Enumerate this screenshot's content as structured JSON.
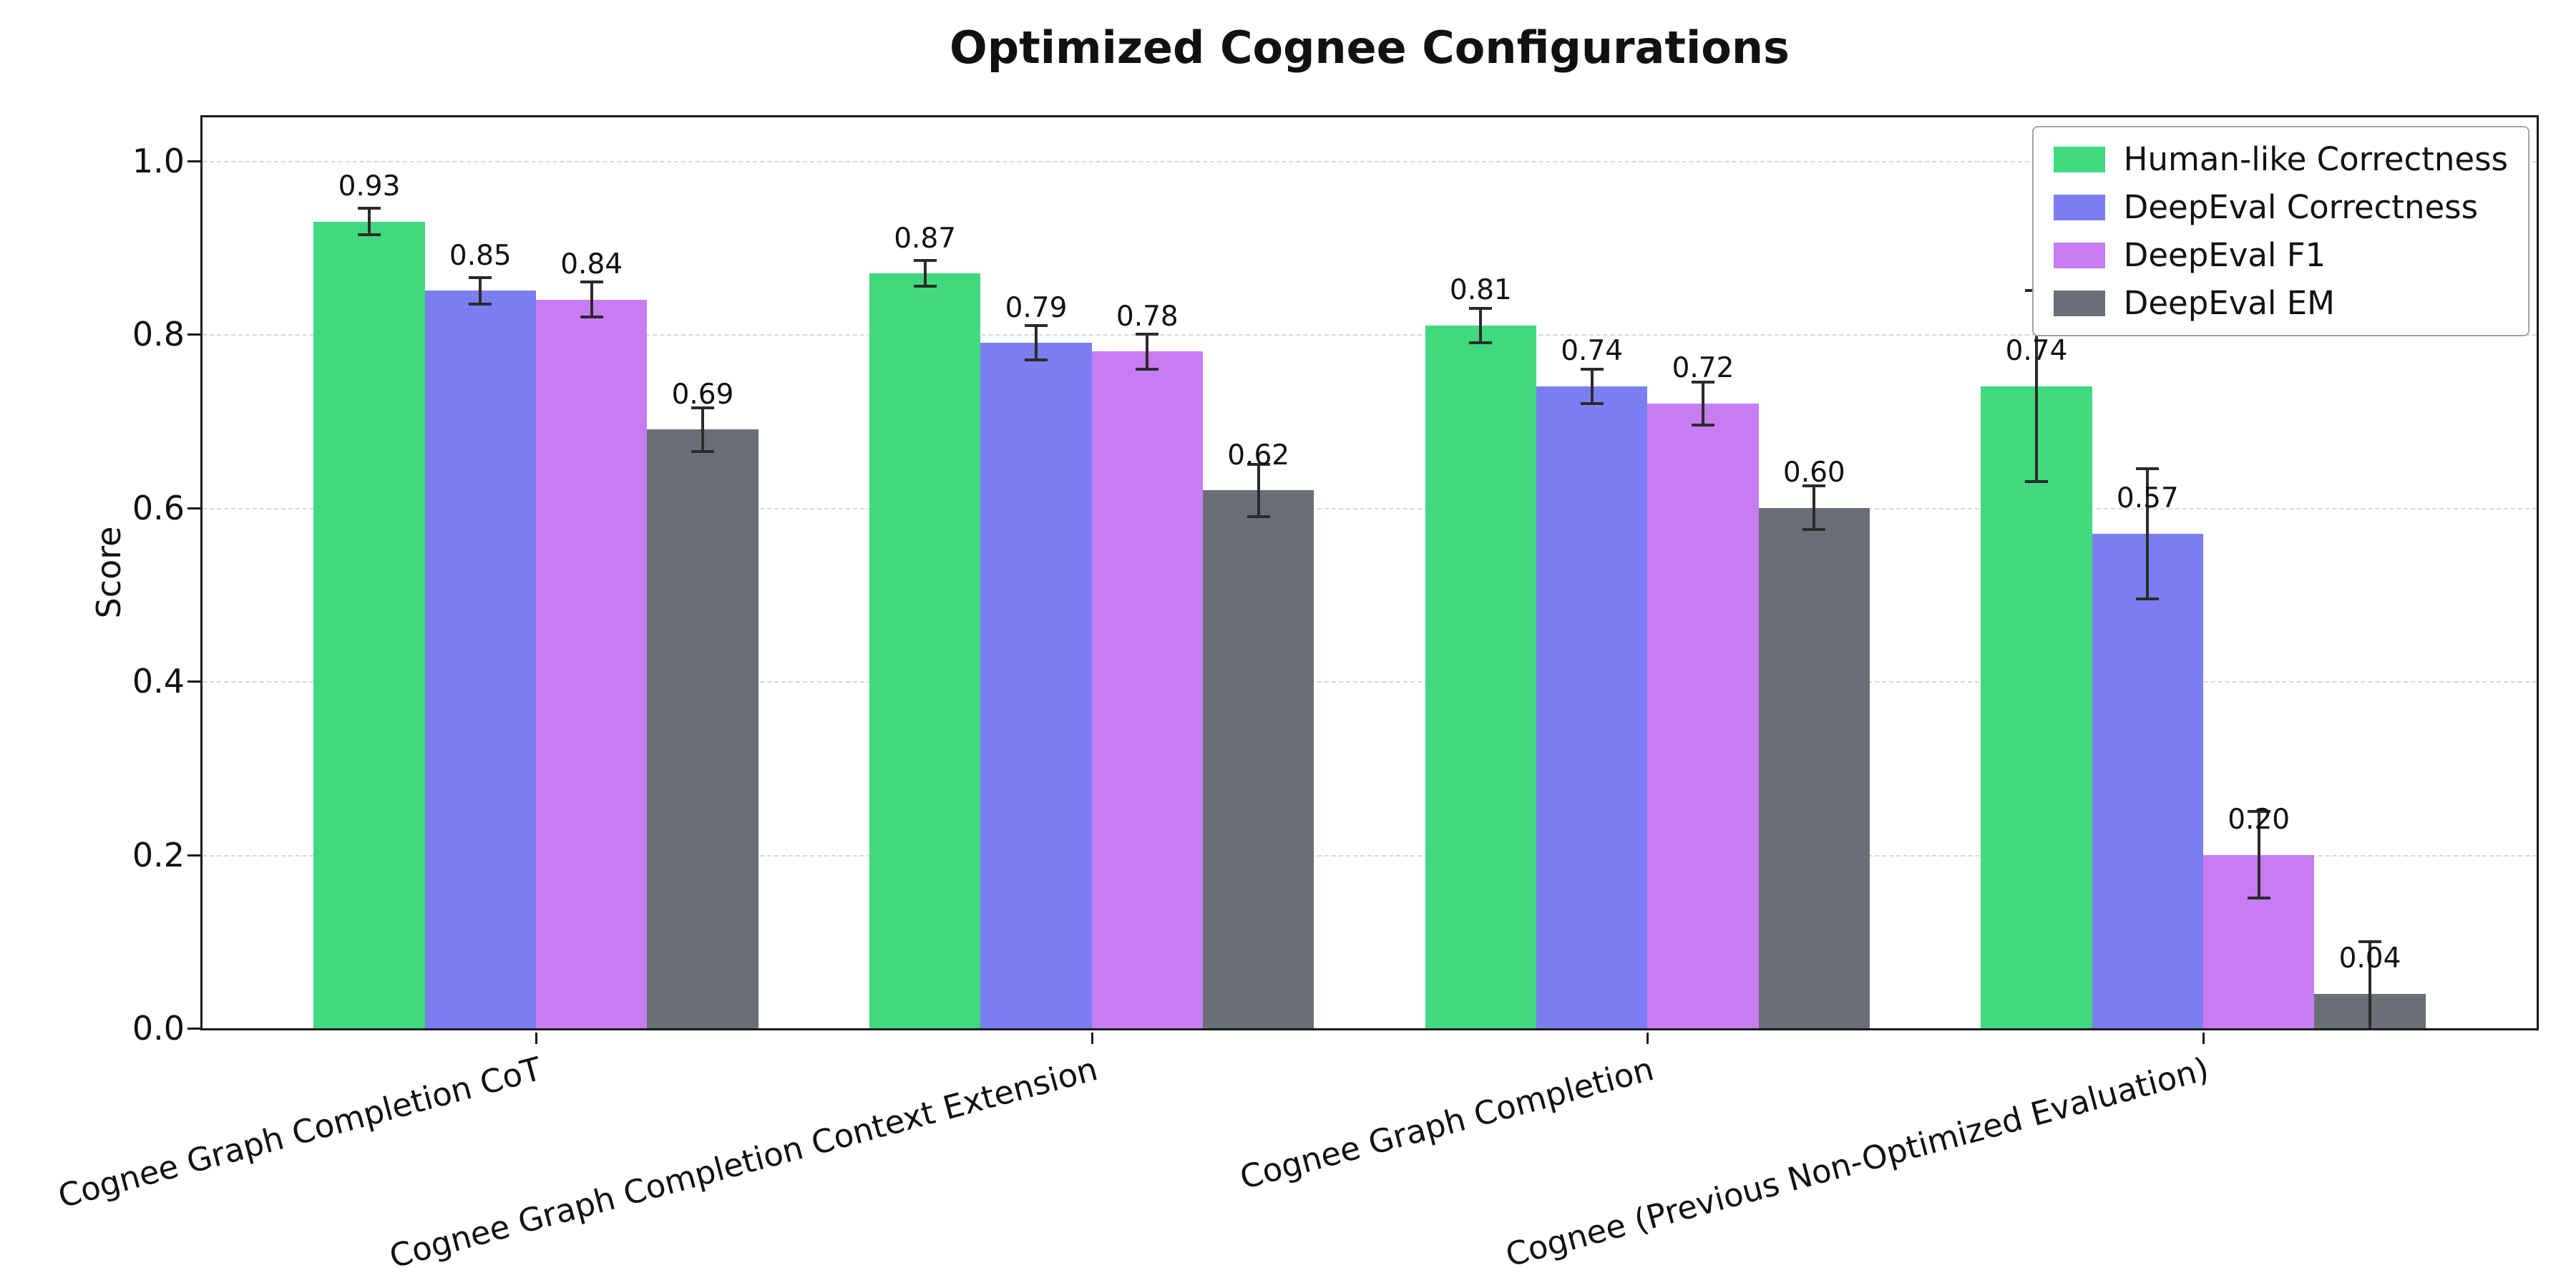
{
  "title": "Optimized Cognee Configurations",
  "chart_data": {
    "type": "bar",
    "title": "Optimized Cognee Configurations",
    "xlabel": "",
    "ylabel": "Score",
    "ylim": [
      0,
      1.05
    ],
    "yticks": [
      0,
      0.2,
      0.4,
      0.6,
      0.8,
      1.0
    ],
    "ytick_labels": [
      "0.0",
      "0.2",
      "0.4",
      "0.6",
      "0.8",
      "1.0"
    ],
    "grid": "horizontal dashed",
    "legend_position": "upper right",
    "categories": [
      "Cognee Graph Completion CoT",
      "Cognee Graph Completion Context Extension",
      "Cognee Graph Completion",
      "Cognee (Previous Non-Optimized Evaluation)"
    ],
    "series": [
      {
        "name": "Human-like Correctness",
        "color": "#41d97d",
        "values": [
          0.93,
          0.87,
          0.81,
          0.74
        ],
        "errors": [
          0.015,
          0.015,
          0.02,
          0.11
        ]
      },
      {
        "name": "DeepEval Correctness",
        "color": "#7b7ef1",
        "values": [
          0.85,
          0.79,
          0.74,
          0.57
        ],
        "errors": [
          0.015,
          0.02,
          0.02,
          0.075
        ]
      },
      {
        "name": "DeepEval F1",
        "color": "#c77df1",
        "values": [
          0.84,
          0.78,
          0.72,
          0.2
        ],
        "errors": [
          0.02,
          0.02,
          0.025,
          0.05
        ]
      },
      {
        "name": "DeepEval EM",
        "color": "#6a6e77",
        "values": [
          0.69,
          0.62,
          0.6,
          0.04
        ],
        "errors": [
          0.025,
          0.03,
          0.025,
          0.06
        ]
      }
    ],
    "bar_labels": [
      [
        "0.93",
        "0.85",
        "0.84",
        "0.69"
      ],
      [
        "0.87",
        "0.79",
        "0.78",
        "0.62"
      ],
      [
        "0.81",
        "0.74",
        "0.72",
        "0.60"
      ],
      [
        "0.74",
        "0.57",
        "0.20",
        "0.04"
      ]
    ],
    "error_bar_color": "#2b2b2b",
    "axis_color": "#1a1a1a",
    "grid_color": "#d8d8d8"
  }
}
